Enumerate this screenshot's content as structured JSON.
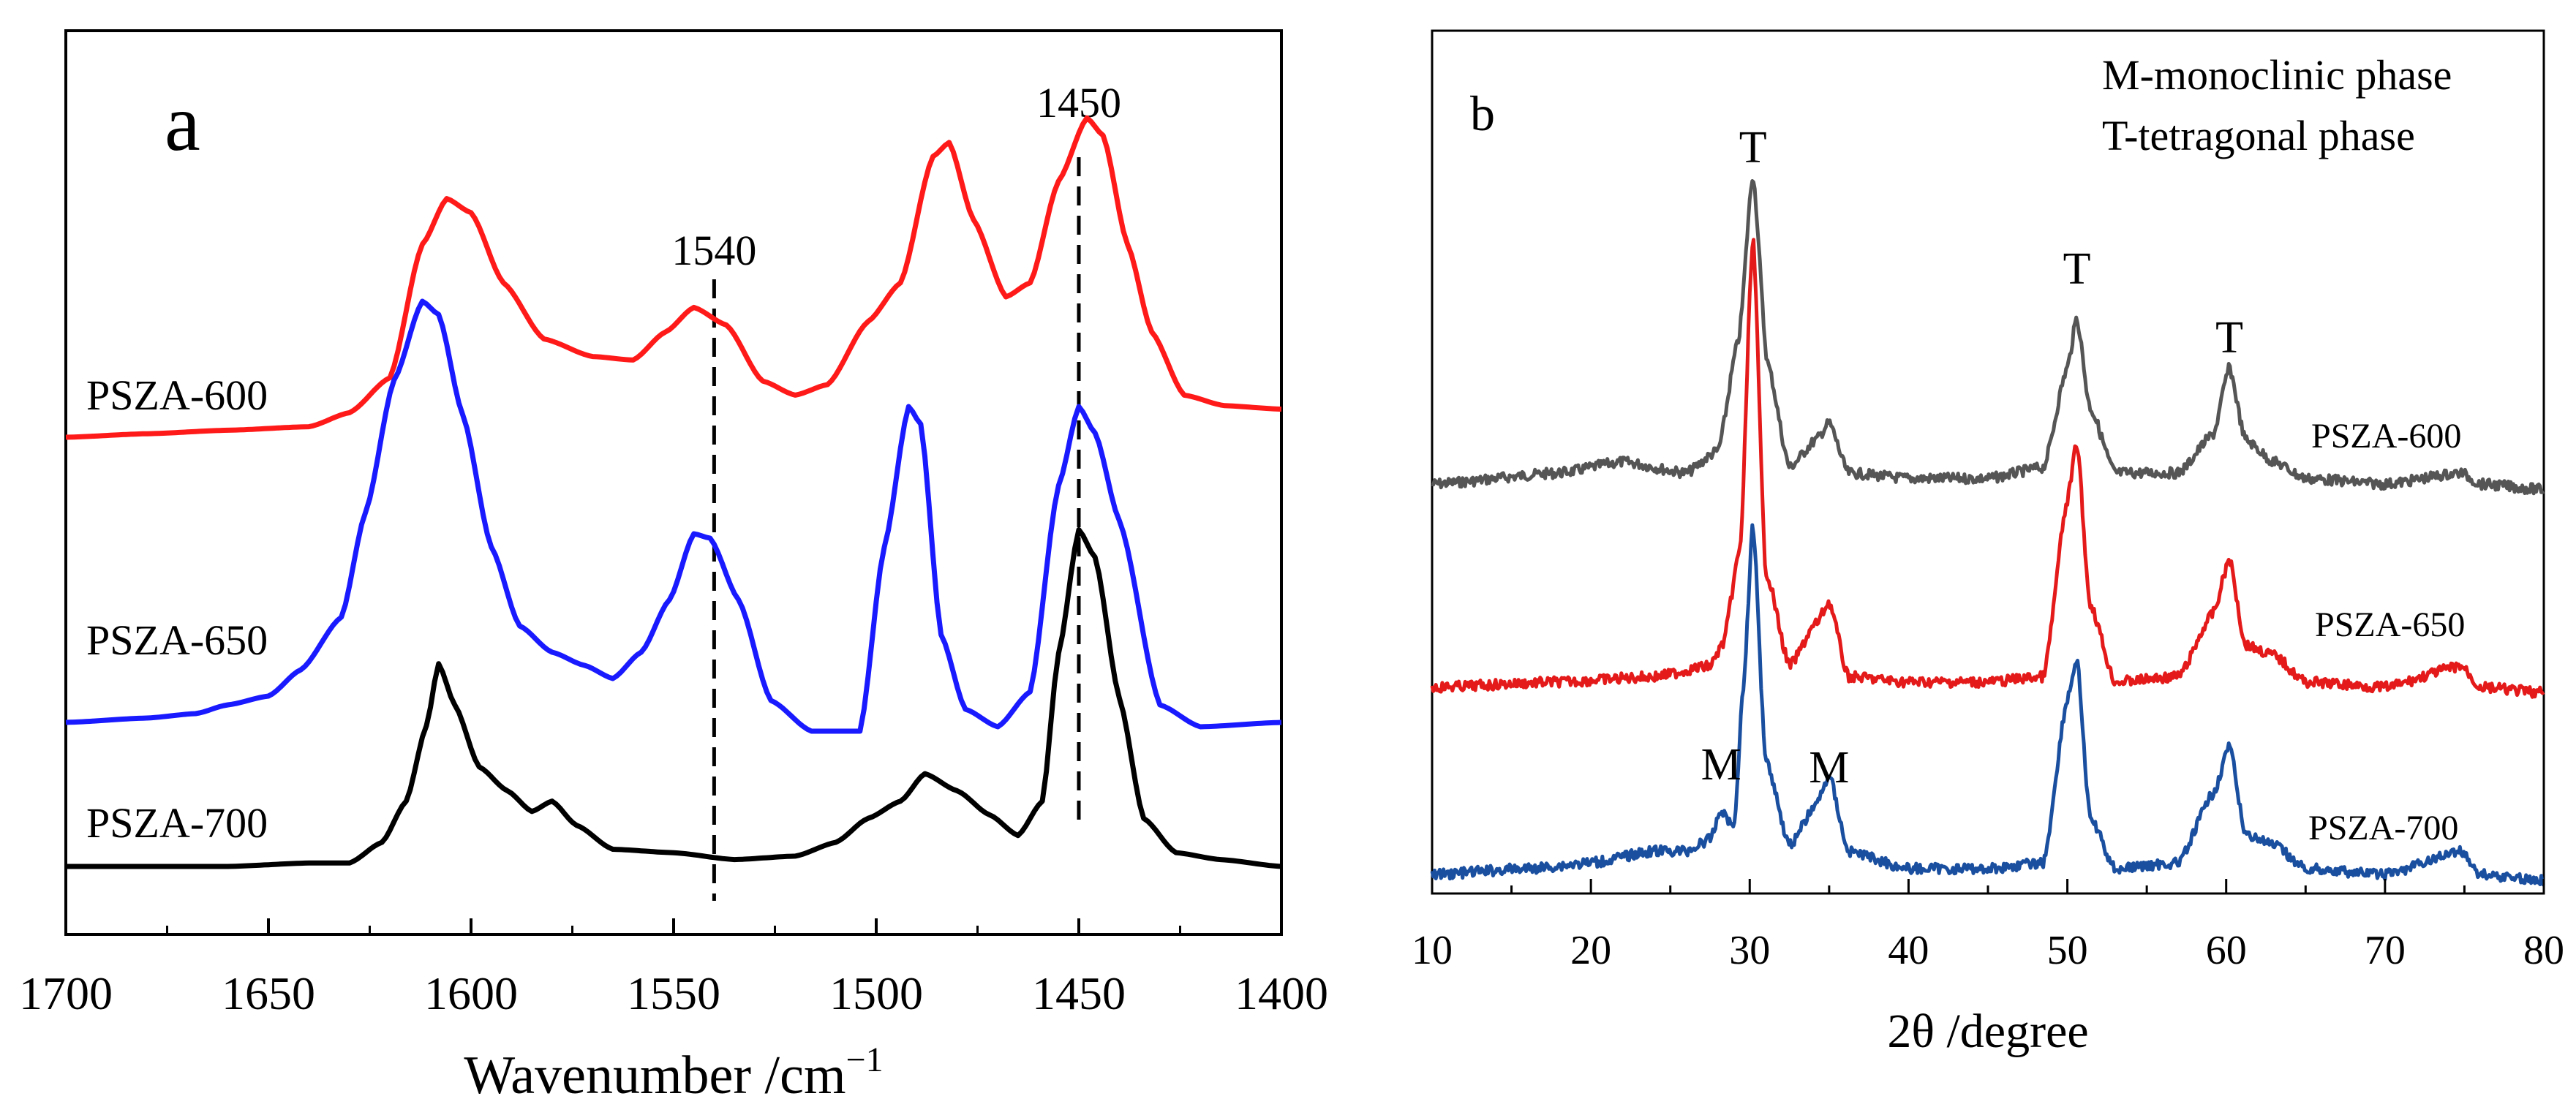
{
  "chart_data": [
    {
      "panel": "a",
      "type": "line",
      "xlabel": "Wavenumber /cm",
      "xlabel_superscript": "−1",
      "x_ticks": [
        "1700",
        "1650",
        "1600",
        "1550",
        "1500",
        "1450",
        "1400"
      ],
      "xlim": [
        1700,
        1400
      ],
      "reversed_x": true,
      "ticks_direction": "in",
      "reference_lines": [
        {
          "x": 1540,
          "label": "1540",
          "style": "dashed"
        },
        {
          "x": 1450,
          "label": "1450",
          "style": "dashed"
        }
      ],
      "series": [
        {
          "name": "PSZA-600",
          "color": "#ff1a1a",
          "points": [
            [
              1700,
              0.0
            ],
            [
              1680,
              0.01
            ],
            [
              1660,
              0.02
            ],
            [
              1640,
              0.03
            ],
            [
              1630,
              0.07
            ],
            [
              1620,
              0.17
            ],
            [
              1612,
              0.55
            ],
            [
              1606,
              0.68
            ],
            [
              1600,
              0.64
            ],
            [
              1592,
              0.44
            ],
            [
              1582,
              0.28
            ],
            [
              1570,
              0.23
            ],
            [
              1560,
              0.22
            ],
            [
              1552,
              0.3
            ],
            [
              1545,
              0.37
            ],
            [
              1537,
              0.32
            ],
            [
              1528,
              0.16
            ],
            [
              1520,
              0.12
            ],
            [
              1512,
              0.15
            ],
            [
              1502,
              0.33
            ],
            [
              1494,
              0.44
            ],
            [
              1486,
              0.8
            ],
            [
              1482,
              0.84
            ],
            [
              1476,
              0.62
            ],
            [
              1468,
              0.4
            ],
            [
              1462,
              0.44
            ],
            [
              1455,
              0.73
            ],
            [
              1448,
              0.91
            ],
            [
              1444,
              0.86
            ],
            [
              1438,
              0.55
            ],
            [
              1432,
              0.3
            ],
            [
              1424,
              0.12
            ],
            [
              1414,
              0.09
            ],
            [
              1400,
              0.08
            ]
          ]
        },
        {
          "name": "PSZA-650",
          "color": "#1a1aff",
          "points": [
            [
              1700,
              0.0
            ],
            [
              1680,
              0.01
            ],
            [
              1668,
              0.02
            ],
            [
              1660,
              0.04
            ],
            [
              1650,
              0.06
            ],
            [
              1642,
              0.12
            ],
            [
              1632,
              0.24
            ],
            [
              1626,
              0.48
            ],
            [
              1619,
              0.78
            ],
            [
              1612,
              0.96
            ],
            [
              1608,
              0.93
            ],
            [
              1602,
              0.7
            ],
            [
              1595,
              0.4
            ],
            [
              1588,
              0.22
            ],
            [
              1580,
              0.16
            ],
            [
              1572,
              0.13
            ],
            [
              1565,
              0.1
            ],
            [
              1558,
              0.16
            ],
            [
              1551,
              0.28
            ],
            [
              1545,
              0.43
            ],
            [
              1541,
              0.42
            ],
            [
              1534,
              0.28
            ],
            [
              1526,
              0.05
            ],
            [
              1516,
              -0.02
            ],
            [
              1504,
              -0.02
            ],
            [
              1498,
              0.4
            ],
            [
              1492,
              0.72
            ],
            [
              1489,
              0.68
            ],
            [
              1484,
              0.2
            ],
            [
              1478,
              0.03
            ],
            [
              1470,
              -0.01
            ],
            [
              1462,
              0.07
            ],
            [
              1455,
              0.54
            ],
            [
              1450,
              0.72
            ],
            [
              1446,
              0.66
            ],
            [
              1440,
              0.46
            ],
            [
              1430,
              0.04
            ],
            [
              1420,
              -0.01
            ],
            [
              1400,
              0.0
            ]
          ]
        },
        {
          "name": "PSZA-700",
          "color": "#000000",
          "points": [
            [
              1700,
              0.0
            ],
            [
              1680,
              0.0
            ],
            [
              1660,
              0.0
            ],
            [
              1640,
              0.01
            ],
            [
              1630,
              0.01
            ],
            [
              1622,
              0.07
            ],
            [
              1616,
              0.19
            ],
            [
              1611,
              0.41
            ],
            [
              1608,
              0.59
            ],
            [
              1604,
              0.47
            ],
            [
              1598,
              0.29
            ],
            [
              1591,
              0.22
            ],
            [
              1585,
              0.16
            ],
            [
              1580,
              0.19
            ],
            [
              1574,
              0.12
            ],
            [
              1565,
              0.05
            ],
            [
              1550,
              0.04
            ],
            [
              1535,
              0.02
            ],
            [
              1520,
              0.03
            ],
            [
              1510,
              0.07
            ],
            [
              1502,
              0.14
            ],
            [
              1494,
              0.19
            ],
            [
              1488,
              0.27
            ],
            [
              1480,
              0.22
            ],
            [
              1472,
              0.15
            ],
            [
              1465,
              0.09
            ],
            [
              1459,
              0.19
            ],
            [
              1455,
              0.62
            ],
            [
              1450,
              0.98
            ],
            [
              1446,
              0.9
            ],
            [
              1440,
              0.49
            ],
            [
              1434,
              0.14
            ],
            [
              1426,
              0.04
            ],
            [
              1415,
              0.02
            ],
            [
              1400,
              0.0
            ]
          ]
        }
      ],
      "panel_label": "a"
    },
    {
      "panel": "b",
      "type": "line",
      "xlabel": "2θ /degree",
      "x_ticks": [
        "10",
        "20",
        "30",
        "40",
        "50",
        "60",
        "70",
        "80"
      ],
      "xlim": [
        10,
        80
      ],
      "ticks_direction": "in",
      "legend_text": [
        "M-monoclinic phase",
        "T-tetragonal phase"
      ],
      "peak_annotations": [
        {
          "label": "T",
          "x": 30.2
        },
        {
          "label": "T",
          "x": 50.6
        },
        {
          "label": "T",
          "x": 60.2
        },
        {
          "label": "M",
          "x": 28.2
        },
        {
          "label": "M",
          "x": 35.0
        }
      ],
      "series": [
        {
          "name": "PSZA-600",
          "color": "#555555",
          "points": [
            [
              10,
              0.0
            ],
            [
              18,
              0.02
            ],
            [
              22,
              0.04
            ],
            [
              26,
              0.02
            ],
            [
              28,
              0.06
            ],
            [
              29.3,
              0.26
            ],
            [
              30.2,
              0.56
            ],
            [
              31.1,
              0.22
            ],
            [
              32.5,
              0.03
            ],
            [
              34.2,
              0.08
            ],
            [
              35.0,
              0.11
            ],
            [
              36.2,
              0.02
            ],
            [
              40,
              0.01
            ],
            [
              45,
              0.01
            ],
            [
              48.5,
              0.03
            ],
            [
              50.0,
              0.21
            ],
            [
              50.6,
              0.3
            ],
            [
              51.4,
              0.14
            ],
            [
              53,
              0.02
            ],
            [
              57,
              0.02
            ],
            [
              59.2,
              0.09
            ],
            [
              60.2,
              0.21
            ],
            [
              61.2,
              0.08
            ],
            [
              63,
              0.04
            ],
            [
              65,
              0.01
            ],
            [
              70,
              0.0
            ],
            [
              74.8,
              0.02
            ],
            [
              76,
              0.0
            ],
            [
              80,
              -0.01
            ]
          ]
        },
        {
          "name": "PSZA-650",
          "color": "#e41a1a",
          "points": [
            [
              10,
              0.0
            ],
            [
              18,
              0.01
            ],
            [
              24,
              0.02
            ],
            [
              27.5,
              0.04
            ],
            [
              28.3,
              0.08
            ],
            [
              29.4,
              0.26
            ],
            [
              30.2,
              0.85
            ],
            [
              31.0,
              0.22
            ],
            [
              32.5,
              0.04
            ],
            [
              34.2,
              0.12
            ],
            [
              35.0,
              0.16
            ],
            [
              36.2,
              0.02
            ],
            [
              40,
              0.01
            ],
            [
              45,
              0.01
            ],
            [
              48.5,
              0.02
            ],
            [
              50.0,
              0.35
            ],
            [
              50.6,
              0.46
            ],
            [
              51.4,
              0.16
            ],
            [
              53,
              0.01
            ],
            [
              57,
              0.02
            ],
            [
              59.2,
              0.14
            ],
            [
              60.2,
              0.24
            ],
            [
              61.2,
              0.08
            ],
            [
              63,
              0.06
            ],
            [
              65,
              0.01
            ],
            [
              70,
              0.0
            ],
            [
              74.8,
              0.04
            ],
            [
              76,
              0.0
            ],
            [
              80,
              -0.01
            ]
          ]
        },
        {
          "name": "PSZA-700",
          "color": "#1a4fa0",
          "points": [
            [
              10,
              0.0
            ],
            [
              16,
              0.01
            ],
            [
              20,
              0.02
            ],
            [
              24,
              0.04
            ],
            [
              26,
              0.04
            ],
            [
              27.5,
              0.06
            ],
            [
              28.2,
              0.11
            ],
            [
              29.0,
              0.08
            ],
            [
              29.6,
              0.32
            ],
            [
              30.2,
              0.6
            ],
            [
              31.0,
              0.2
            ],
            [
              32.5,
              0.05
            ],
            [
              34.2,
              0.12
            ],
            [
              35.0,
              0.17
            ],
            [
              36.2,
              0.04
            ],
            [
              40,
              0.01
            ],
            [
              45,
              0.01
            ],
            [
              48.5,
              0.02
            ],
            [
              50.0,
              0.3
            ],
            [
              50.6,
              0.37
            ],
            [
              51.4,
              0.1
            ],
            [
              53,
              0.01
            ],
            [
              57,
              0.02
            ],
            [
              59.2,
              0.14
            ],
            [
              60.2,
              0.22
            ],
            [
              61.2,
              0.07
            ],
            [
              63,
              0.05
            ],
            [
              65,
              0.01
            ],
            [
              70,
              0.0
            ],
            [
              74.8,
              0.04
            ],
            [
              76,
              0.0
            ],
            [
              80,
              -0.01
            ]
          ]
        }
      ],
      "panel_label": "b"
    }
  ]
}
